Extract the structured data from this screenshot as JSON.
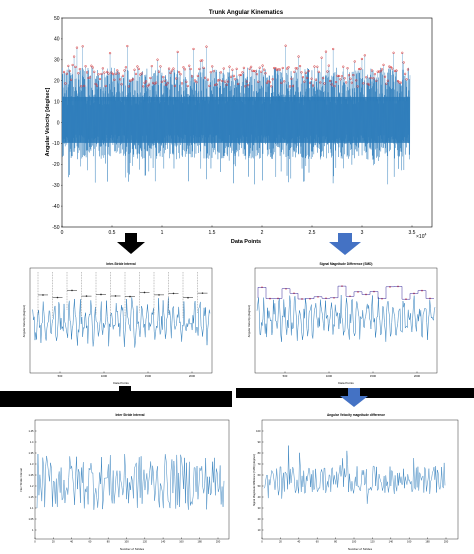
{
  "colors": {
    "signal": "#2b7bba",
    "peak_marker": "#e0302f",
    "ibi_marker": "#222222",
    "smd_marker": "#3a2a9a",
    "arrow_black": "#000000",
    "arrow_blue": "#4472c4",
    "band": "#000000"
  },
  "main_plot": {
    "title": "Trunk Angular Kinematics",
    "ylabel": "Angular Velocity [deg/sec]",
    "xlabel": "Data Points",
    "x_exponent": "×10",
    "x_exponent_power": "4",
    "x_ticks": [
      "0",
      "0.5",
      "1",
      "1.5",
      "2",
      "2.5",
      "3",
      "3.5"
    ],
    "y_ticks": [
      "50",
      "40",
      "30",
      "20",
      "10",
      "0",
      "-10",
      "-20",
      "-30",
      "-40",
      "-50"
    ]
  },
  "panel_ibi": {
    "title": "Inter-Stride Interval",
    "ylabel": "Angular Velocity (deg/sec)",
    "xlabel": "Data Points",
    "x_ticks": [
      "500",
      "1000",
      "1500",
      "2000"
    ]
  },
  "panel_smd": {
    "title": "Signal Magnitude Difference (SMD)",
    "ylabel": "Angular Velocity (deg/sec)",
    "xlabel": "Data Points",
    "x_ticks": [
      "500",
      "1000",
      "1500",
      "2000"
    ]
  },
  "result_ibi": {
    "title": "Inter Stride Interval",
    "ylabel": "Inter Stride Interval",
    "xlabel": "Number of Strides",
    "x_ticks": [
      "0",
      "20",
      "40",
      "60",
      "80",
      "100",
      "120",
      "140",
      "160",
      "180",
      "200"
    ],
    "y_ticks": [
      "1.45",
      "1.4",
      "1.35",
      "1.3",
      "1.25",
      "1.2",
      "1.15",
      "1.1",
      "1.05",
      "1"
    ]
  },
  "result_smd": {
    "title": "Angular Velocity magnitude difference",
    "ylabel": "Signal Magnitude Difference (SMD) (deg/sec)",
    "xlabel": "Number of Strides",
    "x_ticks": [
      "0",
      "20",
      "40",
      "60",
      "80",
      "100",
      "120",
      "140",
      "160",
      "180",
      "200"
    ],
    "y_ticks": [
      "100",
      "90",
      "80",
      "70",
      "60",
      "50",
      "40",
      "30",
      "20",
      "10"
    ]
  },
  "arrows": [
    {
      "name": "arrow-left-down",
      "color": "black"
    },
    {
      "name": "arrow-right-down",
      "color": "blue"
    },
    {
      "name": "arrow-bottom-left",
      "color": "black"
    },
    {
      "name": "arrow-bottom-right",
      "color": "blue"
    }
  ]
}
